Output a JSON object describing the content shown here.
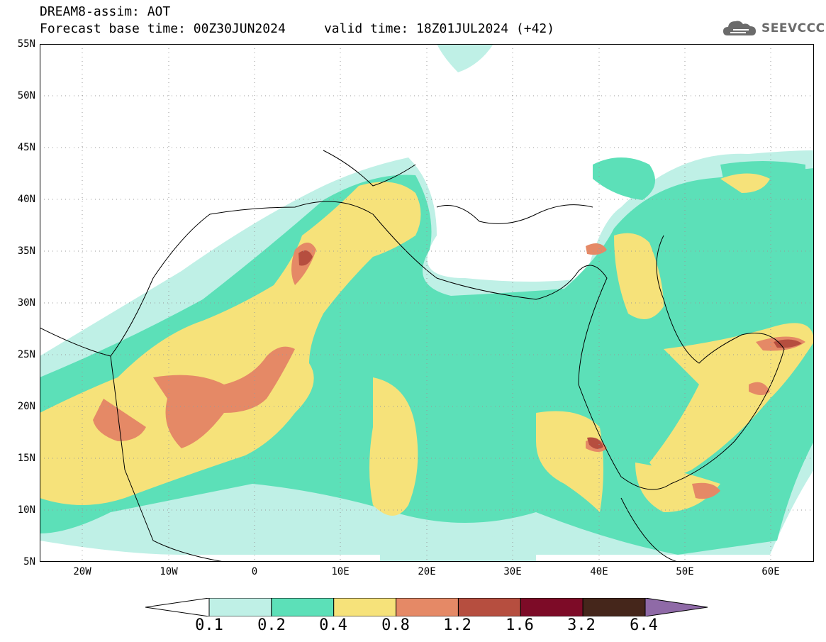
{
  "header": {
    "title_line1": "DREAM8-assim: AOT",
    "title_line2": "Forecast base time: 00Z30JUN2024     valid time: 18Z01JUL2024 (+42)"
  },
  "logo": {
    "text": "SEEVCCC",
    "icon": "cloud-icon"
  },
  "axes": {
    "lat_labels": [
      "55N",
      "50N",
      "45N",
      "40N",
      "35N",
      "30N",
      "25N",
      "20N",
      "15N",
      "10N",
      "5N"
    ],
    "lon_labels": [
      "20W",
      "10W",
      "0",
      "10E",
      "20E",
      "30E",
      "40E",
      "50E",
      "60E"
    ]
  },
  "colorbar": {
    "labels": [
      "0.1",
      "0.2",
      "0.4",
      "0.8",
      "1.2",
      "1.6",
      "3.2",
      "6.4"
    ],
    "colors": [
      "#ffffff",
      "#bff0e6",
      "#5ce0b8",
      "#f6e27a",
      "#e58966",
      "#b64e3f",
      "#7d0b27",
      "#45261b",
      "#8f6aa7"
    ]
  }
}
